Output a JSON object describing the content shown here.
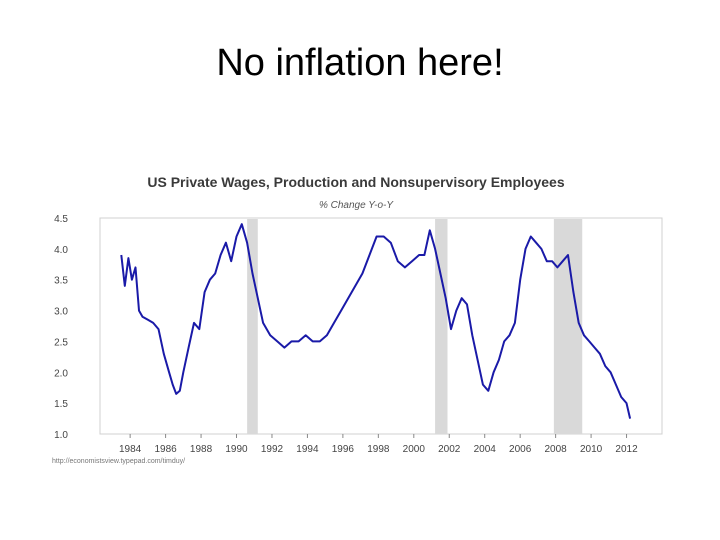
{
  "slide": {
    "title": "No inflation here!"
  },
  "chart_data": {
    "type": "line",
    "title": "US Private Wages, Production and Nonsupervisory Employees",
    "subtitle": "% Change Y-o-Y",
    "source": "http://economistsview.typepad.com/timduy/",
    "xlabel": "",
    "ylabel": "",
    "xlim": [
      1982.3,
      2014
    ],
    "ylim": [
      1.0,
      4.5
    ],
    "yticks": [
      "1.0",
      "1.5",
      "2.0",
      "2.5",
      "3.0",
      "3.5",
      "4.0",
      "4.5"
    ],
    "xticks": [
      "1984",
      "1986",
      "1988",
      "1990",
      "1992",
      "1994",
      "1996",
      "1998",
      "2000",
      "2002",
      "2004",
      "2006",
      "2008",
      "2010",
      "2012"
    ],
    "grid": false,
    "recessions": [
      [
        1990.6,
        1991.2
      ],
      [
        2001.2,
        2001.9
      ],
      [
        2007.9,
        2009.5
      ]
    ],
    "series": [
      {
        "color": "#1a1aa8",
        "x": [
          1983.5,
          1983.7,
          1983.9,
          1984.1,
          1984.3,
          1984.5,
          1984.7,
          1985.0,
          1985.3,
          1985.6,
          1985.9,
          1986.2,
          1986.4,
          1986.6,
          1986.8,
          1987.0,
          1987.3,
          1987.6,
          1987.9,
          1988.2,
          1988.5,
          1988.8,
          1989.1,
          1989.4,
          1989.7,
          1990.0,
          1990.3,
          1990.6,
          1990.9,
          1991.2,
          1991.5,
          1991.9,
          1992.3,
          1992.7,
          1993.1,
          1993.5,
          1993.9,
          1994.3,
          1994.7,
          1995.1,
          1995.5,
          1995.9,
          1996.3,
          1996.7,
          1997.1,
          1997.5,
          1997.9,
          1998.3,
          1998.7,
          1999.1,
          1999.5,
          1999.9,
          2000.3,
          2000.6,
          2000.9,
          2001.2,
          2001.5,
          2001.8,
          2002.1,
          2002.4,
          2002.7,
          2003.0,
          2003.3,
          2003.6,
          2003.9,
          2004.2,
          2004.5,
          2004.8,
          2005.1,
          2005.4,
          2005.7,
          2006.0,
          2006.3,
          2006.6,
          2006.9,
          2007.2,
          2007.5,
          2007.8,
          2008.1,
          2008.4,
          2008.7,
          2009.0,
          2009.3,
          2009.6,
          2009.9,
          2010.2,
          2010.5,
          2010.8,
          2011.1,
          2011.4,
          2011.7,
          2012.0,
          2012.2
        ],
        "values": [
          3.9,
          3.4,
          3.85,
          3.5,
          3.7,
          3.0,
          2.9,
          2.85,
          2.8,
          2.7,
          2.3,
          2.0,
          1.8,
          1.65,
          1.7,
          2.0,
          2.4,
          2.8,
          2.7,
          3.3,
          3.5,
          3.6,
          3.9,
          4.1,
          3.8,
          4.2,
          4.4,
          4.1,
          3.6,
          3.2,
          2.8,
          2.6,
          2.5,
          2.4,
          2.5,
          2.5,
          2.6,
          2.5,
          2.5,
          2.6,
          2.8,
          3.0,
          3.2,
          3.4,
          3.6,
          3.9,
          4.2,
          4.2,
          4.1,
          3.8,
          3.7,
          3.8,
          3.9,
          3.9,
          4.3,
          4.0,
          3.6,
          3.2,
          2.7,
          3.0,
          3.2,
          3.1,
          2.6,
          2.2,
          1.8,
          1.7,
          2.0,
          2.2,
          2.5,
          2.6,
          2.8,
          3.5,
          4.0,
          4.2,
          4.1,
          4.0,
          3.8,
          3.8,
          3.7,
          3.8,
          3.9,
          3.3,
          2.8,
          2.6,
          2.5,
          2.4,
          2.3,
          2.1,
          2.0,
          1.8,
          1.6,
          1.5,
          1.25
        ]
      }
    ]
  }
}
